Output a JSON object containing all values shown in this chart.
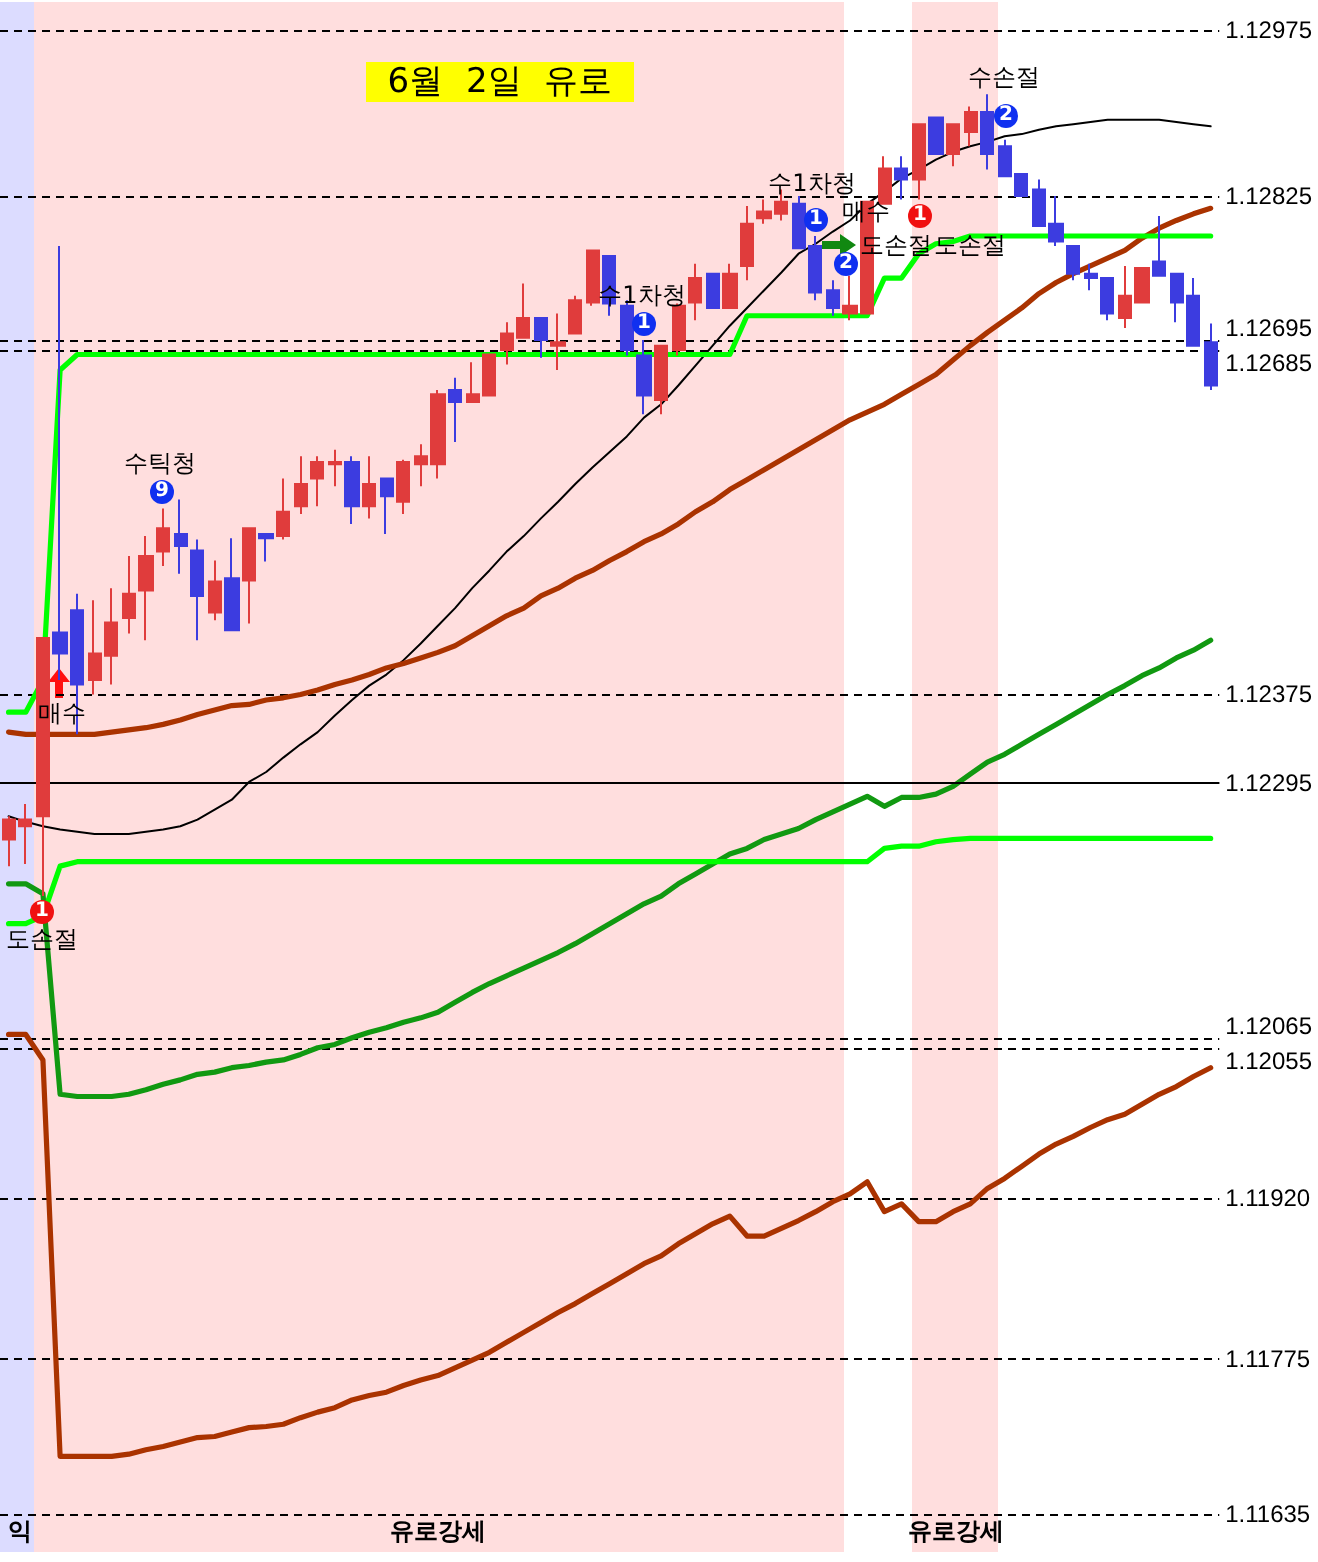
{
  "chart_data": {
    "type": "candlestick",
    "title": "6월 2일 유로",
    "categories": [
      null,
      null,
      null,
      null,
      null,
      null,
      null,
      null,
      null,
      null,
      null,
      null,
      null,
      null,
      null,
      null,
      null,
      null,
      null,
      null,
      null,
      null,
      null,
      null,
      null,
      null,
      null,
      null,
      null,
      null,
      null,
      null,
      null,
      null,
      null,
      null,
      null,
      null,
      null,
      null,
      null,
      null,
      null,
      null,
      null,
      null,
      null,
      null,
      null,
      null,
      null,
      null,
      null,
      null,
      null,
      null,
      null,
      null,
      null,
      null,
      null,
      null,
      null,
      null,
      null,
      null,
      null,
      null,
      null,
      null,
      null
    ],
    "ohlc": [
      [
        1.12244,
        1.12265,
        1.1222,
        1.12262
      ],
      [
        1.12256,
        1.12276,
        1.12222,
        1.12262
      ],
      [
        1.12265,
        1.12426,
        1.12193,
        1.12426
      ],
      [
        1.12431,
        1.1278,
        1.12388,
        1.12412
      ],
      [
        1.12451,
        1.12466,
        1.12339,
        1.12384
      ],
      [
        1.12388,
        1.1246,
        1.12375,
        1.12412
      ],
      [
        1.1241,
        1.12471,
        1.12384,
        1.1244
      ],
      [
        1.12444,
        1.125,
        1.1243,
        1.12466
      ],
      [
        1.12469,
        1.12518,
        1.12424,
        1.125
      ],
      [
        1.12504,
        1.12543,
        1.12491,
        1.12525
      ],
      [
        1.1252,
        1.12551,
        1.12484,
        1.12509
      ],
      [
        1.12505,
        1.12515,
        1.12424,
        1.12464
      ],
      [
        1.12449,
        1.12496,
        1.12442,
        1.12477
      ],
      [
        1.1248,
        1.12516,
        1.12433,
        1.12433
      ],
      [
        1.12478,
        1.12525,
        1.12439,
        1.12525
      ],
      [
        1.1252,
        1.1252,
        1.12495,
        1.12516
      ],
      [
        1.12518,
        1.1257,
        1.12515,
        1.1254
      ],
      [
        1.12545,
        1.1259,
        1.12538,
        1.12565
      ],
      [
        1.1257,
        1.1259,
        1.12545,
        1.12585
      ],
      [
        1.12583,
        1.12596,
        1.12563,
        1.12585
      ],
      [
        1.12585,
        1.1259,
        1.12529,
        1.12545
      ],
      [
        1.12545,
        1.1259,
        1.12534,
        1.12565
      ],
      [
        1.1257,
        1.1257,
        1.1252,
        1.12554
      ],
      [
        1.12549,
        1.12587,
        1.12538,
        1.12585
      ],
      [
        1.12583,
        1.12601,
        1.12563,
        1.1259
      ],
      [
        1.12583,
        1.1265,
        1.1257,
        1.12646
      ],
      [
        1.1265,
        1.12661,
        1.12603,
        1.12639
      ],
      [
        1.12639,
        1.12675,
        1.12639,
        1.12646
      ],
      [
        1.12645,
        1.12682,
        1.12645,
        1.12682
      ],
      [
        1.12686,
        1.12711,
        1.12673,
        1.12701
      ],
      [
        1.12697,
        1.12746,
        1.12697,
        1.12715
      ],
      [
        1.12715,
        1.12715,
        1.12679,
        1.12695
      ],
      [
        1.1269,
        1.12719,
        1.12668,
        1.12693
      ],
      [
        1.12701,
        1.12735,
        1.12701,
        1.12731
      ],
      [
        1.12729,
        1.12776,
        1.12726,
        1.12776
      ],
      [
        1.12771,
        1.12771,
        1.12717,
        1.12728
      ],
      [
        1.12726,
        1.12731,
        1.12681,
        1.12686
      ],
      [
        1.12681,
        1.12695,
        1.12628,
        1.12645
      ],
      [
        1.12641,
        1.1269,
        1.12628,
        1.1269
      ],
      [
        1.12686,
        1.12728,
        1.12681,
        1.12726
      ],
      [
        1.12729,
        1.12764,
        1.12713,
        1.12751
      ],
      [
        1.12755,
        1.12755,
        1.12724,
        1.12724
      ],
      [
        1.12724,
        1.12764,
        1.12724,
        1.12755
      ],
      [
        1.12762,
        1.12816,
        1.12749,
        1.128
      ],
      [
        1.12805,
        1.12822,
        1.128,
        1.12811
      ],
      [
        1.12809,
        1.12831,
        1.12803,
        1.1282
      ],
      [
        1.12818,
        1.12825,
        1.12778,
        1.12778
      ],
      [
        1.1278,
        1.12789,
        1.12731,
        1.12738
      ],
      [
        1.1274,
        1.12749,
        1.12717,
        1.12724
      ],
      [
        1.12719,
        1.12753,
        1.12713,
        1.12726
      ],
      [
        1.12719,
        1.1282,
        1.12719,
        1.1282
      ],
      [
        1.12818,
        1.12861,
        1.12818,
        1.1285
      ],
      [
        1.1285,
        1.12861,
        1.12822,
        1.1284
      ],
      [
        1.1284,
        1.1289,
        1.12822,
        1.1289
      ],
      [
        1.12896,
        1.12896,
        1.12863,
        1.12863
      ],
      [
        1.12863,
        1.1289,
        1.12852,
        1.1289
      ],
      [
        1.12883,
        1.12906,
        1.1287,
        1.12901
      ],
      [
        1.12901,
        1.12917,
        1.12849,
        1.12863
      ],
      [
        1.1287,
        1.12876,
        1.12843,
        1.12843
      ],
      [
        1.12845,
        1.12845,
        1.12825,
        1.12825
      ],
      [
        1.12831,
        1.1284,
        1.12798,
        1.12798
      ],
      [
        1.128,
        1.12825,
        1.1278,
        1.12784
      ],
      [
        1.1278,
        1.1278,
        1.12749,
        1.12755
      ],
      [
        1.12755,
        1.12764,
        1.1274,
        1.12751
      ],
      [
        1.12751,
        1.12751,
        1.12713,
        1.12719
      ],
      [
        1.12715,
        1.12762,
        1.12706,
        1.12735
      ],
      [
        1.12729,
        1.1276,
        1.12729,
        1.1276
      ],
      [
        1.12766,
        1.12807,
        1.12753,
        1.12753
      ],
      [
        1.12755,
        1.12755,
        1.12711,
        1.12729
      ],
      [
        1.12735,
        1.12751,
        1.1269,
        1.1269
      ],
      [
        1.12693,
        1.1271,
        1.1265,
        1.12654
      ]
    ],
    "colors": [
      "#e03c3c",
      "#e03c3c",
      "#e03c3c",
      "#3c3ce0",
      "#3c3ce0",
      "#e03c3c",
      "#e03c3c",
      "#e03c3c",
      "#e03c3c",
      "#e03c3c",
      "#3c3ce0",
      "#3c3ce0",
      "#e03c3c",
      "#3c3ce0",
      "#e03c3c",
      "#3c3ce0",
      "#e03c3c",
      "#e03c3c",
      "#e03c3c",
      "#e03c3c",
      "#3c3ce0",
      "#e03c3c",
      "#3c3ce0",
      "#e03c3c",
      "#e03c3c",
      "#e03c3c",
      "#3c3ce0",
      "#e03c3c",
      "#e03c3c",
      "#e03c3c",
      "#e03c3c",
      "#3c3ce0",
      "#e03c3c",
      "#e03c3c",
      "#e03c3c",
      "#3c3ce0",
      "#3c3ce0",
      "#3c3ce0",
      "#e03c3c",
      "#e03c3c",
      "#e03c3c",
      "#3c3ce0",
      "#e03c3c",
      "#e03c3c",
      "#e03c3c",
      "#e03c3c",
      "#3c3ce0",
      "#3c3ce0",
      "#3c3ce0",
      "#e03c3c",
      "#e03c3c",
      "#e03c3c",
      "#3c3ce0",
      "#e03c3c",
      "#3c3ce0",
      "#e03c3c",
      "#e03c3c",
      "#3c3ce0",
      "#3c3ce0",
      "#3c3ce0",
      "#3c3ce0",
      "#3c3ce0",
      "#3c3ce0",
      "#3c3ce0",
      "#3c3ce0",
      "#e03c3c",
      "#e03c3c",
      "#3c3ce0",
      "#3c3ce0",
      "#3c3ce0",
      "#3c3ce0"
    ],
    "series": [
      {
        "type": "line",
        "color": "#000000",
        "values": [
          1.12265,
          1.1226,
          1.12256,
          1.12253,
          1.12251,
          1.12249,
          1.12249,
          1.12249,
          1.12251,
          1.12253,
          1.12256,
          1.12262,
          1.12271,
          1.1228,
          1.12296,
          1.12305,
          1.12318,
          1.1233,
          1.12341,
          1.12356,
          1.1237,
          1.12383,
          1.12393,
          1.12406,
          1.12421,
          1.12437,
          1.12453,
          1.12471,
          1.12487,
          1.12504,
          1.12518,
          1.12534,
          1.12549,
          1.12565,
          1.1258,
          1.12594,
          1.12608,
          1.12625,
          1.12637,
          1.12654,
          1.12672,
          1.1269,
          1.12708,
          1.12724,
          1.1274,
          1.12756,
          1.12773,
          1.12782,
          1.12793,
          1.12803,
          1.12818,
          1.12829,
          1.12841,
          1.12849,
          1.12858,
          1.12865,
          1.1287,
          1.12874,
          1.12879,
          1.12881,
          1.12885,
          1.12888,
          1.1289,
          1.12892,
          1.12894,
          1.12894,
          1.12894,
          1.12894,
          1.12892,
          1.1289,
          1.12888
        ]
      },
      {
        "type": "line",
        "color": "#aa3300",
        "values": [
          1.12341,
          1.12339,
          1.12339,
          1.12339,
          1.12339,
          1.12339,
          1.12341,
          1.12343,
          1.12345,
          1.12348,
          1.12352,
          1.12357,
          1.12361,
          1.12365,
          1.12366,
          1.1237,
          1.12372,
          1.12375,
          1.12379,
          1.12384,
          1.12388,
          1.12393,
          1.12399,
          1.12403,
          1.12408,
          1.12413,
          1.12419,
          1.12428,
          1.12437,
          1.12446,
          1.12453,
          1.12464,
          1.12471,
          1.1248,
          1.12487,
          1.12496,
          1.12504,
          1.12513,
          1.1252,
          1.12529,
          1.1254,
          1.12549,
          1.1256,
          1.12569,
          1.12578,
          1.12587,
          1.12596,
          1.12605,
          1.12614,
          1.12623,
          1.1263,
          1.12637,
          1.12646,
          1.12655,
          1.12664,
          1.12677,
          1.1269,
          1.12702,
          1.12713,
          1.12724,
          1.12737,
          1.12747,
          1.12755,
          1.12762,
          1.12769,
          1.12776,
          1.12787,
          1.12796,
          1.12803,
          1.12809,
          1.12814
        ]
      },
      {
        "type": "line",
        "color": "#00ff00",
        "values": [
          1.12359,
          1.12359,
          1.12388,
          1.12668,
          1.12682,
          1.12682,
          1.12682,
          1.12682,
          1.12682,
          1.12682,
          1.12682,
          1.12682,
          1.12682,
          1.12682,
          1.12682,
          1.12682,
          1.12682,
          1.12682,
          1.12682,
          1.12682,
          1.12682,
          1.12682,
          1.12682,
          1.12682,
          1.12682,
          1.12682,
          1.12682,
          1.12682,
          1.12682,
          1.12682,
          1.12682,
          1.12682,
          1.12682,
          1.12682,
          1.12682,
          1.12682,
          1.12682,
          1.12682,
          1.12682,
          1.12682,
          1.12682,
          1.12682,
          1.12682,
          1.12717,
          1.12717,
          1.12717,
          1.12717,
          1.12717,
          1.12717,
          1.12717,
          1.12717,
          1.12751,
          1.12751,
          1.12773,
          1.12782,
          1.12784,
          1.12789,
          1.12789,
          1.12789,
          1.12789,
          1.12789,
          1.12789,
          1.12789,
          1.12789,
          1.12789,
          1.12789,
          1.12789,
          1.12789,
          1.12789,
          1.12789,
          1.12789
        ]
      },
      {
        "type": "line",
        "color": "#119911",
        "values": [
          1.12204,
          1.12204,
          1.12195,
          1.12014,
          1.12012,
          1.12012,
          1.12012,
          1.12014,
          1.12018,
          1.12023,
          1.12027,
          1.12032,
          1.12034,
          1.12038,
          1.1204,
          1.12043,
          1.12045,
          1.1205,
          1.12056,
          1.12059,
          1.12065,
          1.1207,
          1.12074,
          1.12079,
          1.12083,
          1.12088,
          1.12097,
          1.12106,
          1.12114,
          1.12121,
          1.12128,
          1.12135,
          1.12142,
          1.1215,
          1.12159,
          1.12168,
          1.12177,
          1.12186,
          1.12193,
          1.12204,
          1.12213,
          1.12222,
          1.12231,
          1.12236,
          1.12244,
          1.12249,
          1.12254,
          1.12262,
          1.12269,
          1.12276,
          1.12283,
          1.12274,
          1.12282,
          1.12282,
          1.12285,
          1.12292,
          1.12303,
          1.12314,
          1.12321,
          1.1233,
          1.12339,
          1.12348,
          1.12357,
          1.12366,
          1.12375,
          1.12383,
          1.12392,
          1.12399,
          1.12408,
          1.12415,
          1.12424
        ]
      },
      {
        "type": "line",
        "color": "#00ff00",
        "values": [
          1.12168,
          1.12168,
          1.12175,
          1.1222,
          1.12224,
          1.12224,
          1.12224,
          1.12224,
          1.12224,
          1.12224,
          1.12224,
          1.12224,
          1.12224,
          1.12224,
          1.12224,
          1.12224,
          1.12224,
          1.12224,
          1.12224,
          1.12224,
          1.12224,
          1.12224,
          1.12224,
          1.12224,
          1.12224,
          1.12224,
          1.12224,
          1.12224,
          1.12224,
          1.12224,
          1.12224,
          1.12224,
          1.12224,
          1.12224,
          1.12224,
          1.12224,
          1.12224,
          1.12224,
          1.12224,
          1.12224,
          1.12224,
          1.12224,
          1.12224,
          1.12224,
          1.12224,
          1.12224,
          1.12224,
          1.12224,
          1.12224,
          1.12224,
          1.12224,
          1.12236,
          1.12238,
          1.12238,
          1.12242,
          1.12244,
          1.12245,
          1.12245,
          1.12245,
          1.12245,
          1.12245,
          1.12245,
          1.12245,
          1.12245,
          1.12245,
          1.12245,
          1.12245,
          1.12245,
          1.12245,
          1.12245,
          1.12245
        ]
      },
      {
        "type": "line",
        "color": "#aa3300",
        "values": [
          1.12068,
          1.12068,
          1.12045,
          1.11687,
          1.11687,
          1.11687,
          1.11687,
          1.11689,
          1.11693,
          1.11696,
          1.117,
          1.11704,
          1.11705,
          1.11709,
          1.11713,
          1.11714,
          1.11716,
          1.11722,
          1.11727,
          1.11731,
          1.11738,
          1.11742,
          1.11745,
          1.11751,
          1.11756,
          1.1176,
          1.11767,
          1.11774,
          1.11781,
          1.1179,
          1.11799,
          1.11808,
          1.11817,
          1.11825,
          1.11834,
          1.11843,
          1.11852,
          1.11861,
          1.11868,
          1.11879,
          1.11888,
          1.11897,
          1.11904,
          1.11886,
          1.11886,
          1.11893,
          1.119,
          1.11908,
          1.11917,
          1.11924,
          1.11935,
          1.11908,
          1.11915,
          1.11899,
          1.11899,
          1.11908,
          1.11915,
          1.11929,
          1.11938,
          1.11949,
          1.1196,
          1.11969,
          1.11976,
          1.11984,
          1.11991,
          1.11996,
          1.12005,
          1.12014,
          1.12021,
          1.1203,
          1.12038
        ]
      }
    ],
    "ylim": [
      1.11635,
      1.12975
    ],
    "yticks": [
      1.11635,
      1.11775,
      {
        "value": 1.1192,
        "label": "1.11920"
      },
      1.12055,
      1.12065,
      1.12295,
      1.12375,
      1.12685,
      1.12695,
      1.12825,
      1.12975
    ],
    "grid": "y",
    "ref_lines": [
      {
        "axis": "y",
        "value": 1.12295,
        "line_style": "solid"
      }
    ],
    "annotations": [
      "수손절",
      "2",
      "수1차청",
      "1",
      "매수",
      "1",
      "도손절",
      "도손절",
      "2",
      "수1차청",
      "1",
      "수틱청",
      "9",
      "매수",
      "1",
      "도손절",
      "익",
      "유로강세",
      "유로강세"
    ],
    "marker": "none",
    "tick_labels": "y"
  }
}
